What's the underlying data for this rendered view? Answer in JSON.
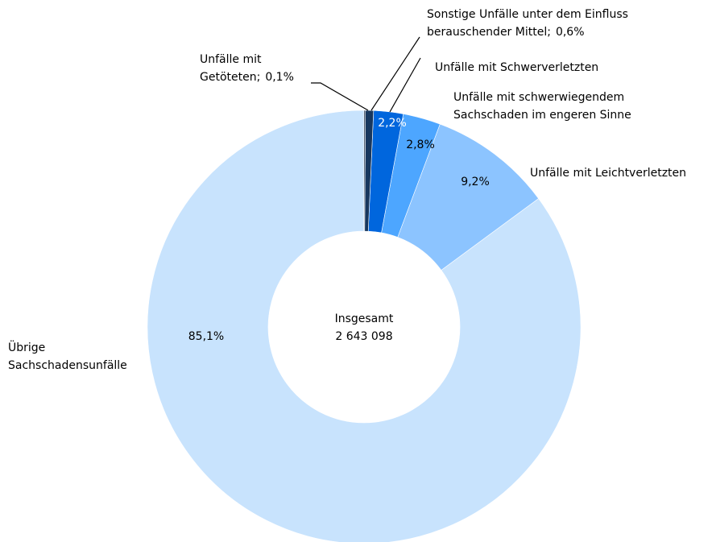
{
  "chart_data": {
    "type": "donut",
    "categories": [
      [
        "Unfälle mit",
        "Getöteten;"
      ],
      [
        "Sonstige Unfälle unter dem Einfluss",
        "berauschender Mittel;"
      ],
      [
        "Unfälle mit Schwerverletzten"
      ],
      [
        "Unfälle mit schwerwiegendem",
        "Sachschaden im engeren Sinne"
      ],
      [
        "Unfälle mit Leichtverletzten"
      ],
      [
        "Übrige",
        "Sachschadensunfälle"
      ]
    ],
    "values": [
      0.1,
      0.6,
      2.2,
      2.8,
      9.2,
      85.1
    ],
    "value_labels": [
      "0,1%",
      "0,6%",
      "2,2%",
      "2,8%",
      "9,2%",
      "85,1%"
    ],
    "colors": [
      "#0b1f3a",
      "#17375e",
      "#0066dd",
      "#4da6ff",
      "#8cc4ff",
      "#c8e3fd"
    ],
    "center_label": [
      "Insgesamt",
      "2 643 098"
    ]
  }
}
